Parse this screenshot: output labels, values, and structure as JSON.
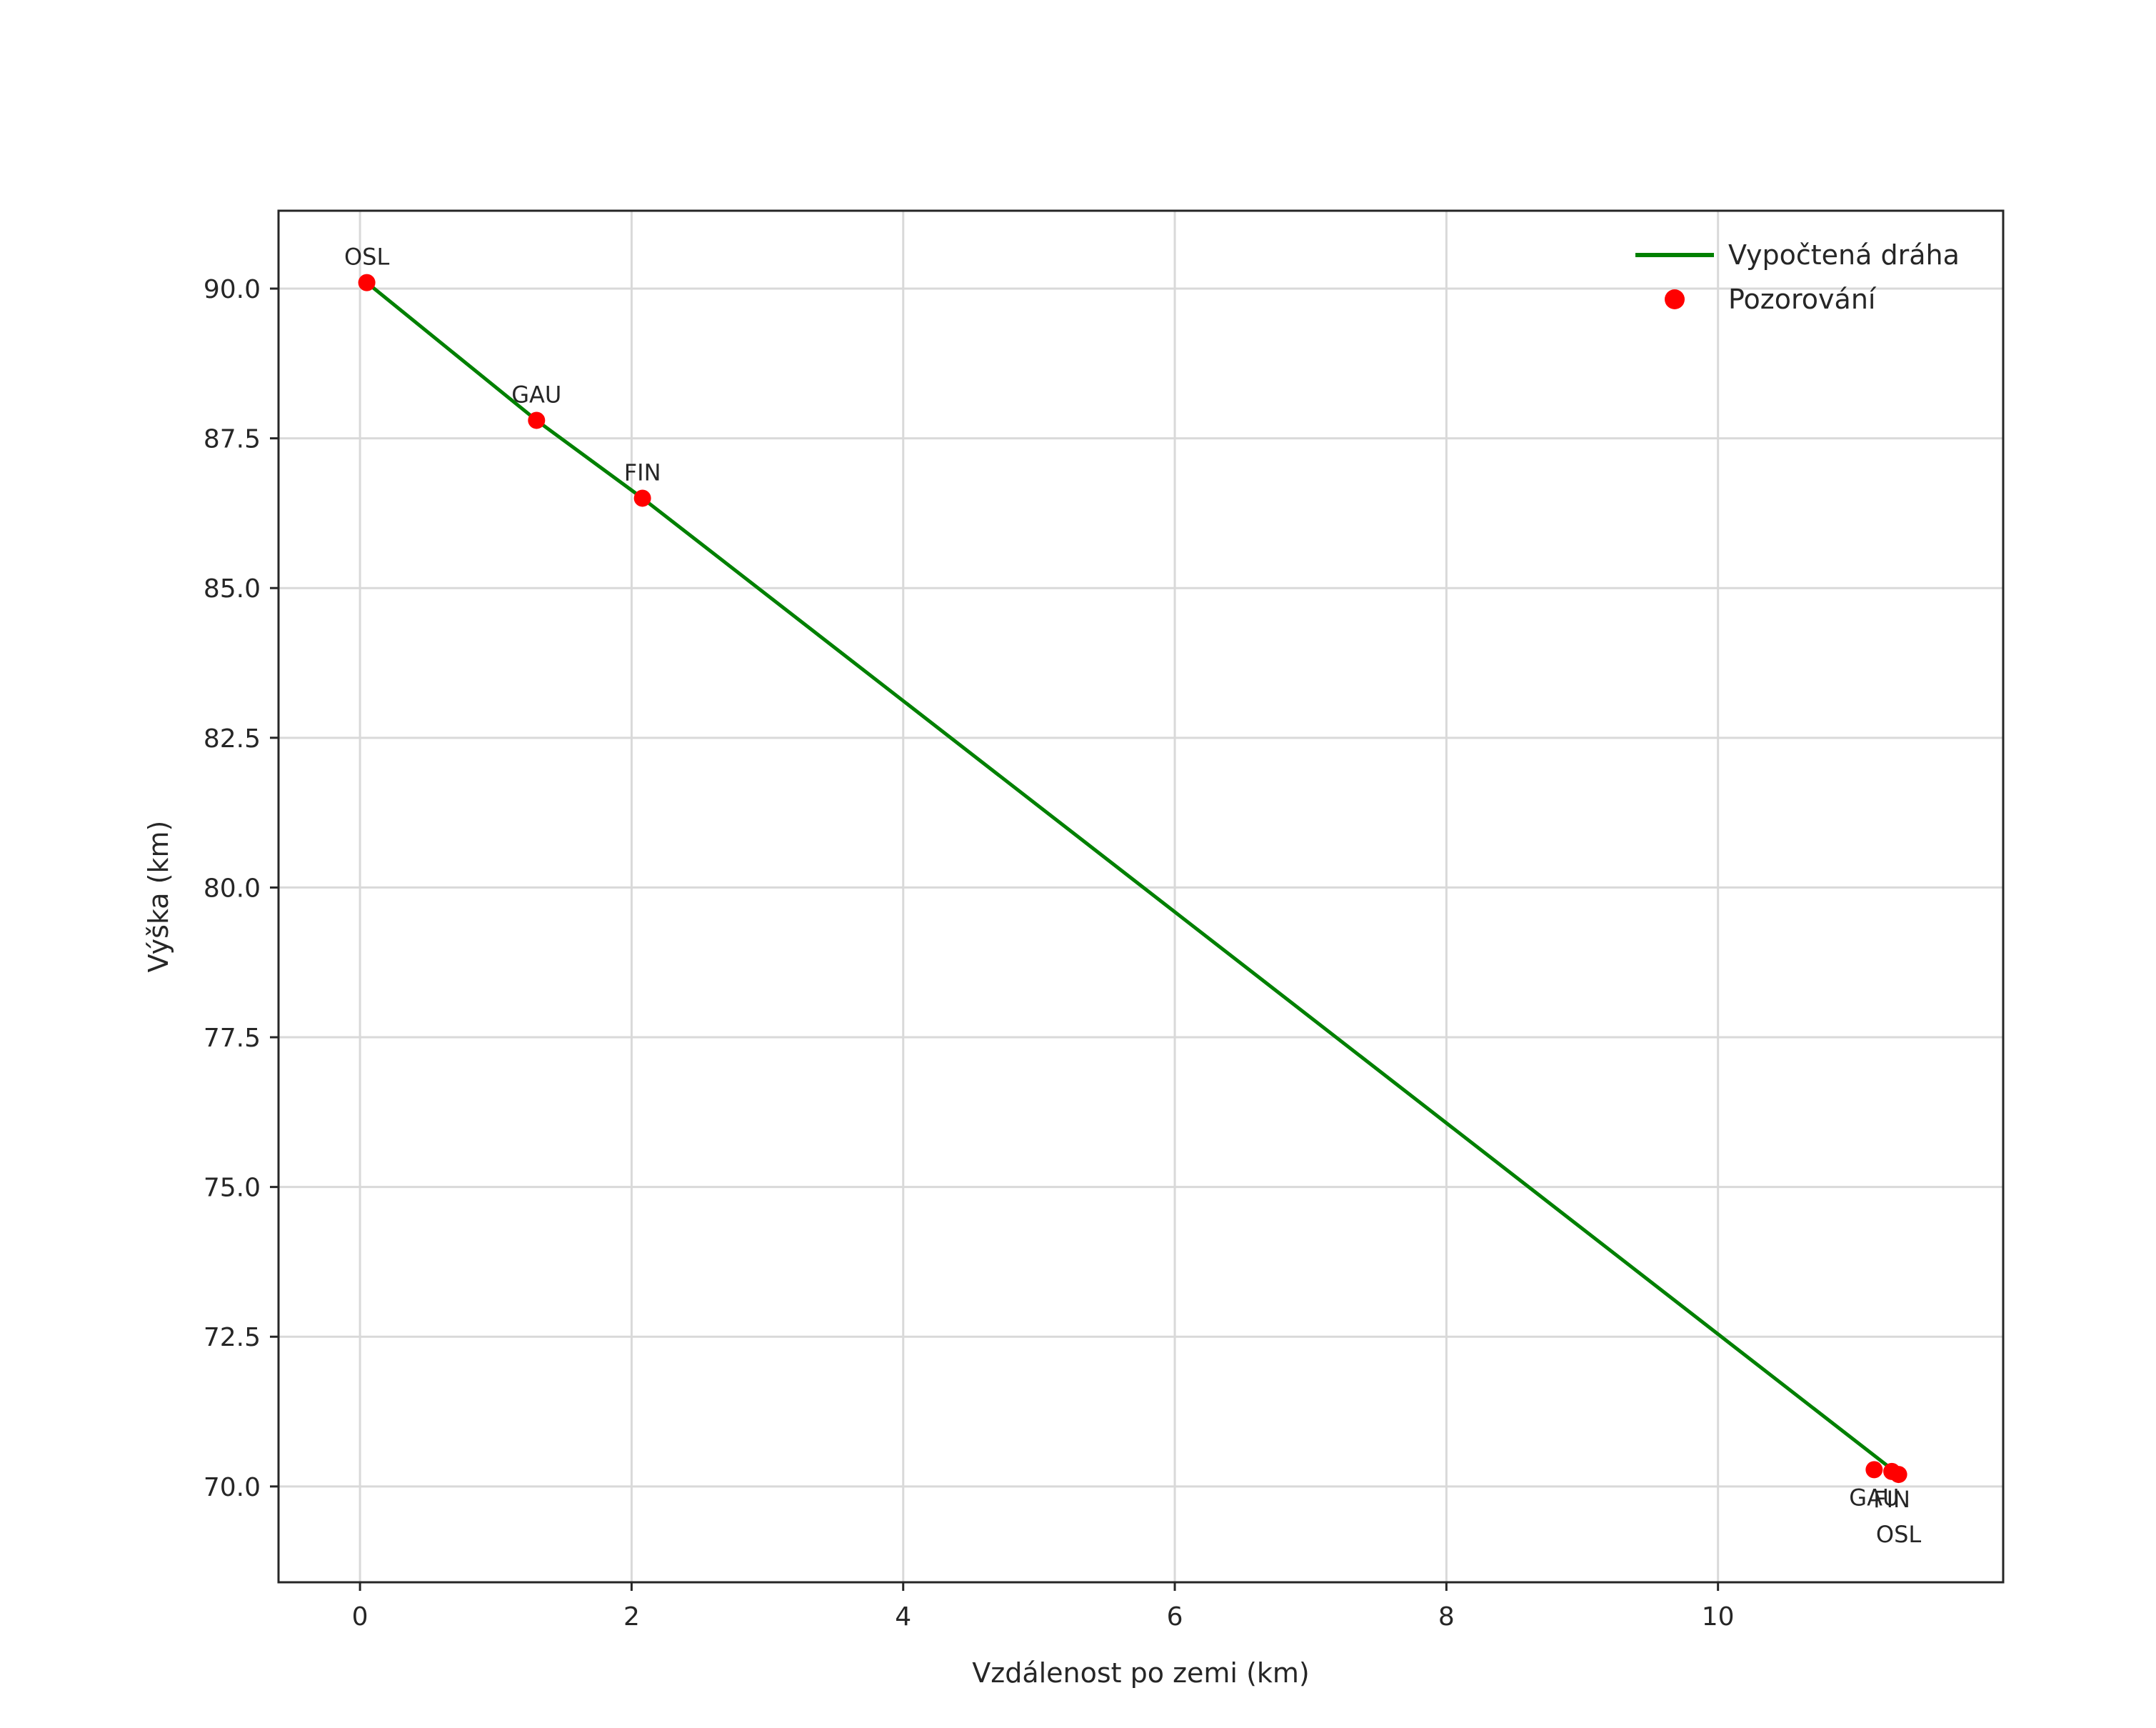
{
  "chart_data": {
    "type": "line",
    "title": "",
    "xlabel": "Vzdálenost po zemi (km)",
    "ylabel": "Výška (km)",
    "xlim": [
      -0.6,
      12.1
    ],
    "ylim": [
      68.4,
      91.3
    ],
    "xticks": [
      0,
      2,
      4,
      6,
      8,
      10
    ],
    "xtick_labels": [
      "0",
      "2",
      "4",
      "6",
      "8",
      "10"
    ],
    "yticks": [
      70.0,
      72.5,
      75.0,
      77.5,
      80.0,
      82.5,
      85.0,
      87.5,
      90.0
    ],
    "ytick_labels": [
      "70.0",
      "72.5",
      "75.0",
      "77.5",
      "80.0",
      "82.5",
      "85.0",
      "87.5",
      "90.0"
    ],
    "grid": true,
    "colors": {
      "trajectory": "#008000",
      "observation": "#ff0000",
      "gridline": "#d9d9d9",
      "spine": "#262626",
      "text": "#262626"
    },
    "legend": {
      "position": "upper right",
      "entries": [
        {
          "label": "Vypočtená dráha",
          "type": "line",
          "color": "#008000"
        },
        {
          "label": "Pozorování",
          "type": "marker",
          "color": "#ff0000"
        }
      ]
    },
    "series": [
      {
        "name": "Vypočtená dráha",
        "type": "line",
        "color": "#008000",
        "points": [
          [
            0.05,
            90.1
          ],
          [
            1.3,
            87.8
          ],
          [
            2.08,
            86.5
          ],
          [
            11.33,
            70.2
          ]
        ]
      },
      {
        "name": "Pozorování",
        "type": "scatter",
        "color": "#ff0000",
        "points": [
          {
            "x": 0.05,
            "y": 90.1,
            "label": "OSL",
            "label_side": "above"
          },
          {
            "x": 1.3,
            "y": 87.8,
            "label": "GAU",
            "label_side": "above"
          },
          {
            "x": 2.08,
            "y": 86.5,
            "label": "FIN",
            "label_side": "above"
          },
          {
            "x": 11.15,
            "y": 70.28,
            "label": "GAU",
            "label_side": "below"
          },
          {
            "x": 11.28,
            "y": 70.25,
            "label": "FIN",
            "label_side": "below"
          },
          {
            "x": 11.33,
            "y": 70.2,
            "label": "OSL",
            "label_side": "below2"
          }
        ]
      }
    ]
  }
}
